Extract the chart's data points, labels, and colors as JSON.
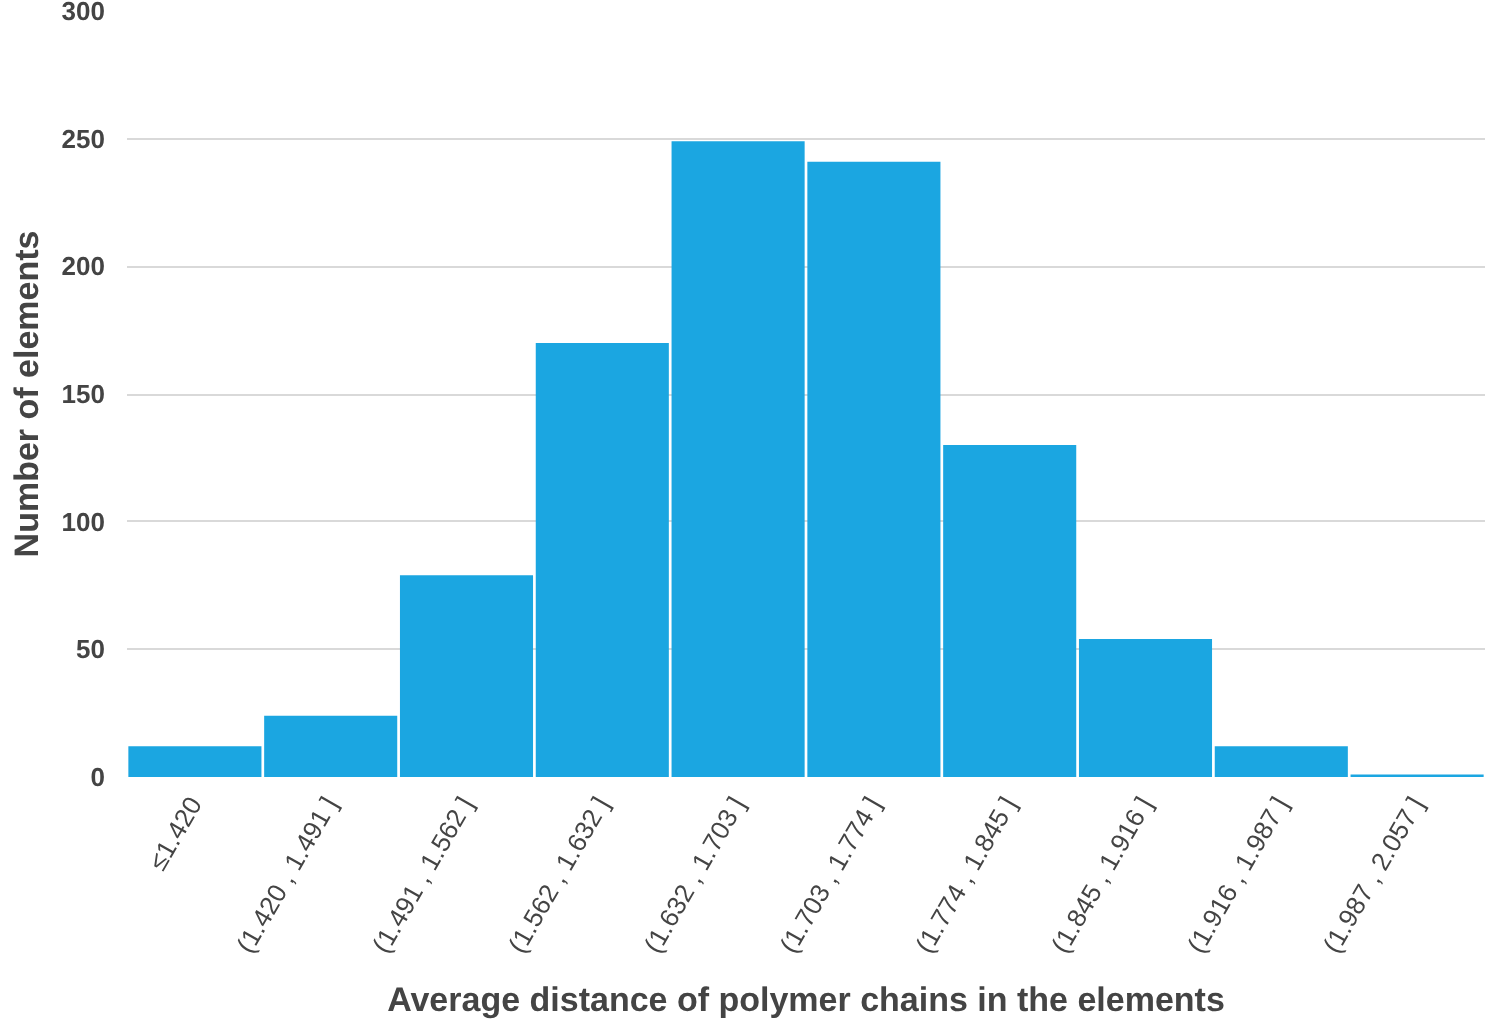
{
  "chart_data": {
    "type": "bar",
    "xlabel": "Average distance of polymer chains in the elements",
    "ylabel": "Number of elements",
    "categories": [
      "≤1.420",
      "(1.420 , 1.491 ]",
      "(1.491 , 1.562 ]",
      "(1.562 , 1.632 ]",
      "(1.632 , 1.703 ]",
      "(1.703 , 1.774 ]",
      "(1.774 , 1.845 ]",
      "(1.845 , 1.916 ]",
      "(1.916 , 1.987 ]",
      "(1.987 , 2.057 ]"
    ],
    "values": [
      12,
      24,
      79,
      170,
      249,
      241,
      130,
      54,
      12,
      1
    ],
    "color": "#1ba6e1",
    "ylim": [
      0,
      300
    ],
    "yticks": [
      0,
      50,
      100,
      150,
      200,
      250,
      300
    ],
    "grid": "y"
  }
}
